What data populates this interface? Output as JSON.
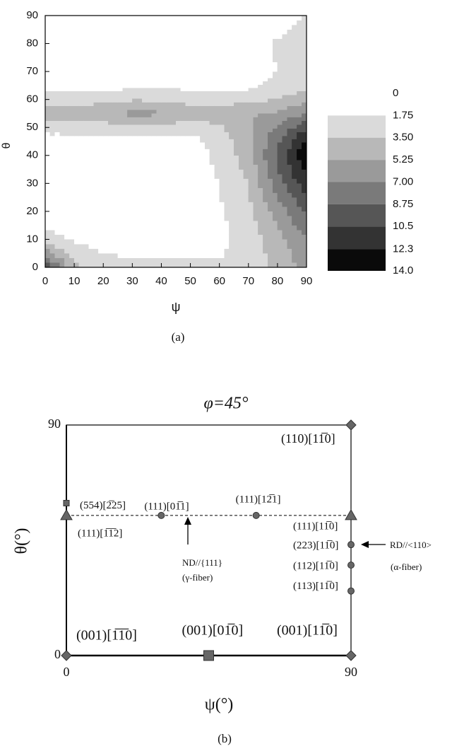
{
  "chart_data": [
    {
      "type": "contour",
      "x_label": "ψ",
      "y_label": "θ",
      "panel_label": "(a)",
      "x": [
        0,
        10,
        20,
        30,
        40,
        50,
        60,
        70,
        80,
        90
      ],
      "y": [
        0,
        10,
        20,
        30,
        40,
        47,
        55,
        63,
        70,
        80,
        90
      ],
      "z": [
        [
          10,
          4,
          2.5,
          2,
          2,
          2,
          2,
          2.5,
          4,
          6
        ],
        [
          2.5,
          1.5,
          1,
          1,
          1,
          1,
          1.2,
          2.5,
          4.5,
          7
        ],
        [
          0.5,
          0.5,
          0.5,
          0.5,
          0.5,
          0.5,
          1.5,
          3,
          6,
          9
        ],
        [
          0.5,
          0.5,
          0.5,
          0.5,
          0.5,
          0.5,
          1.8,
          3.5,
          8,
          11.5
        ],
        [
          0.8,
          0.8,
          0.8,
          0.8,
          0.8,
          0.8,
          2.2,
          4.5,
          9,
          14
        ],
        [
          1.5,
          1.5,
          1.5,
          1.5,
          1.5,
          1.5,
          2.5,
          5,
          8,
          12
        ],
        [
          4.5,
          4.5,
          4.8,
          5.8,
          5.5,
          4.5,
          4.5,
          5,
          5.5,
          7
        ],
        [
          1.8,
          1.8,
          1.8,
          1.9,
          2,
          1.8,
          1.8,
          1.8,
          2.5,
          3.5
        ],
        [
          0.5,
          0.5,
          0.5,
          0.5,
          0.5,
          0.5,
          0.5,
          0.5,
          1.8,
          2.5
        ],
        [
          0,
          0,
          0,
          0,
          0,
          0,
          0,
          0.5,
          2,
          3
        ],
        [
          0,
          0,
          0,
          0,
          0,
          0,
          0,
          0,
          0.5,
          2
        ]
      ],
      "xlim": [
        0,
        90
      ],
      "ylim": [
        0,
        90
      ],
      "xticks": [
        0,
        10,
        20,
        30,
        40,
        50,
        60,
        70,
        80,
        90
      ],
      "yticks": [
        0,
        10,
        20,
        30,
        40,
        50,
        60,
        70,
        80,
        90
      ],
      "levels": [
        0,
        1.75,
        {
          "value": 3.5,
          "label": "3.50"
        },
        5.25,
        {
          "value": 7,
          "label": "7.00"
        },
        8.75,
        10.5,
        12.3,
        {
          "value": 14,
          "label": "14.0"
        }
      ],
      "colors": [
        "#ffffff",
        "#dadada",
        "#b8b8b8",
        "#9a9a9a",
        "#7a7a7a",
        "#565656",
        "#333333",
        "#0a0a0a"
      ]
    },
    {
      "type": "scatter",
      "title": "φ=45°",
      "x_label": "ψ(°)",
      "y_label": "θ(°)",
      "panel_label": "(b)",
      "xlim": [
        0,
        90
      ],
      "ylim": [
        0,
        90
      ],
      "xticks": [
        0,
        90
      ],
      "yticks": [
        0,
        90
      ],
      "reference_line": {
        "y": 54.7,
        "style": "dashed"
      },
      "points": [
        {
          "x": 0,
          "y": 0,
          "marker": "diamond",
          "label": "(001)[1̅1̅0]"
        },
        {
          "x": 45,
          "y": 0,
          "marker": "square",
          "label": "(001)[01̅0]"
        },
        {
          "x": 90,
          "y": 0,
          "marker": "diamond",
          "label": "(001)[11̅0]"
        },
        {
          "x": 90,
          "y": 90,
          "marker": "diamond",
          "label": "(110)[11̅0]"
        },
        {
          "x": 0,
          "y": 59.5,
          "marker": "small-square",
          "label": "(554)[2̅25]"
        },
        {
          "x": 0,
          "y": 54.7,
          "marker": "triangle",
          "label": "(111)[1̅1̅2]"
        },
        {
          "x": 30,
          "y": 54.7,
          "marker": "circle",
          "label": "(111)[01̅1]"
        },
        {
          "x": 60,
          "y": 54.7,
          "marker": "circle",
          "label": "(111)[12̅1]"
        },
        {
          "x": 90,
          "y": 54.7,
          "marker": "triangle",
          "label": "(111)[11̅0]"
        },
        {
          "x": 90,
          "y": 43.3,
          "marker": "circle",
          "label": "(223)[11̅0]"
        },
        {
          "x": 90,
          "y": 35.3,
          "marker": "circle",
          "label": "(112)[11̅0]"
        },
        {
          "x": 90,
          "y": 25.2,
          "marker": "circle",
          "label": "(113)[11̅0]"
        }
      ],
      "annotations": [
        "ND//{111}",
        "(γ-fiber)",
        "RD//<110>",
        "(α-fiber)"
      ]
    }
  ]
}
